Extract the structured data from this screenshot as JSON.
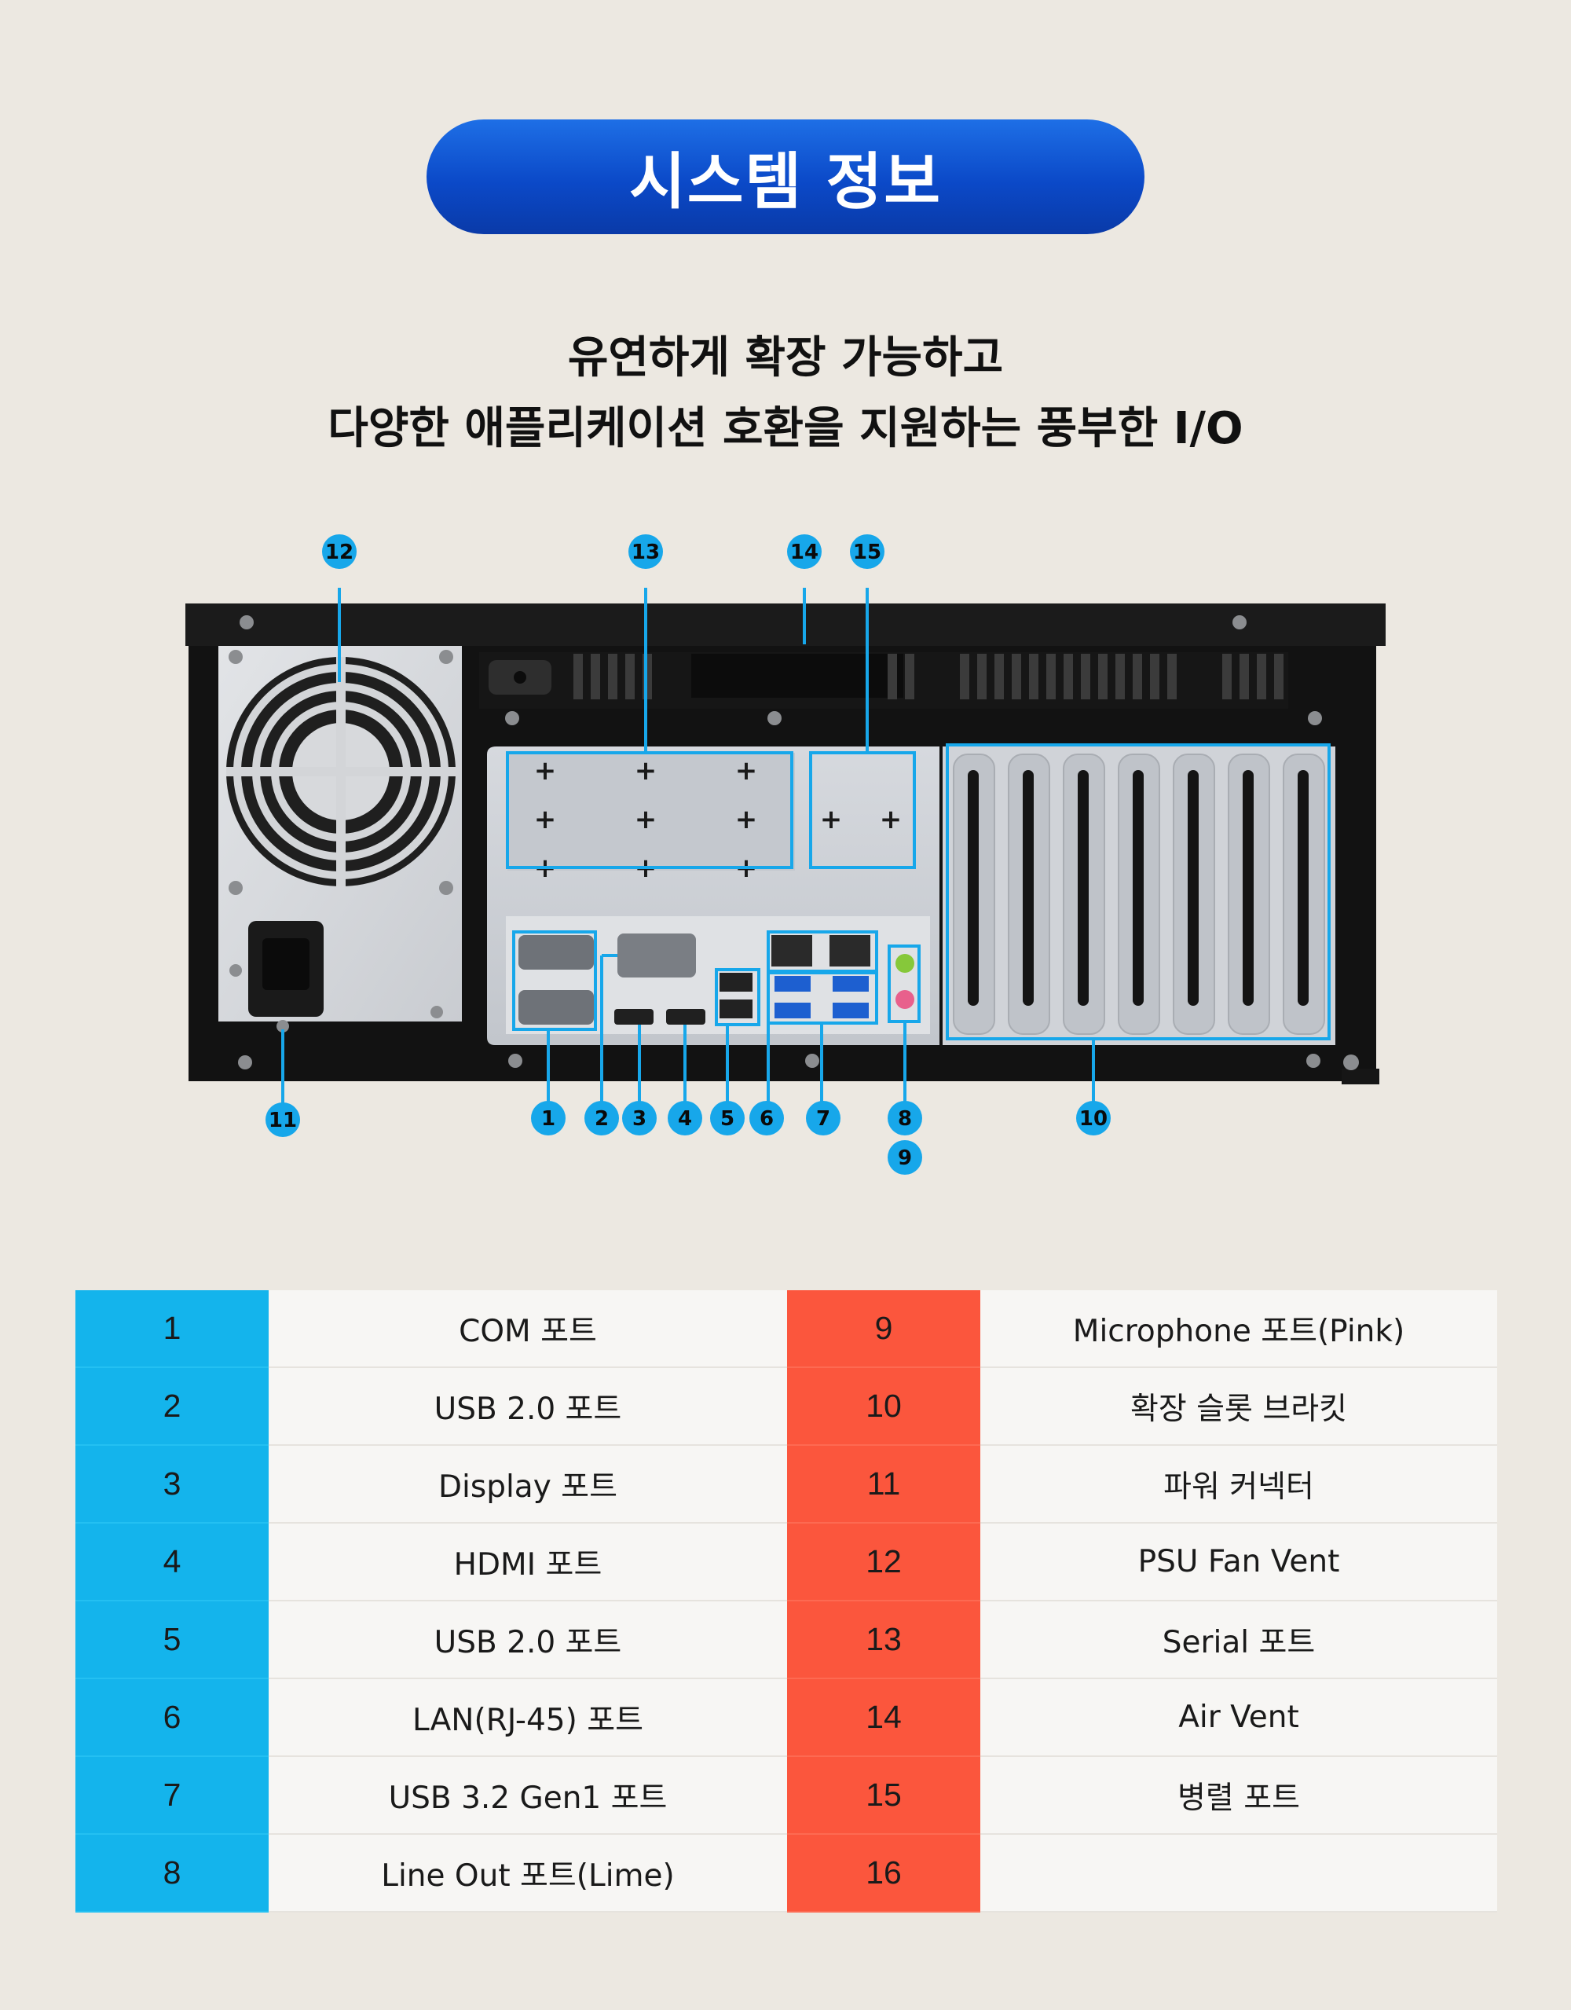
{
  "title": "시스템 정보",
  "subtitle_line1": "유연하게 확장 가능하고",
  "subtitle_line2": "다양한 애플리케이션 호환을 지원하는 풍부한 I/O",
  "accent_color": "#0b49c8",
  "left_badge_color": "#14b4ec",
  "right_badge_color": "#fb563d",
  "callouts": [
    "1",
    "2",
    "3",
    "4",
    "5",
    "6",
    "7",
    "8",
    "9",
    "10",
    "11",
    "12",
    "13",
    "14",
    "15"
  ],
  "table": {
    "left": [
      {
        "num": "1",
        "label": "COM 포트"
      },
      {
        "num": "2",
        "label": "USB 2.0 포트"
      },
      {
        "num": "3",
        "label": "Display 포트"
      },
      {
        "num": "4",
        "label": "HDMI 포트"
      },
      {
        "num": "5",
        "label": "USB 2.0 포트"
      },
      {
        "num": "6",
        "label": "LAN(RJ-45) 포트"
      },
      {
        "num": "7",
        "label": "USB 3.2 Gen1 포트"
      },
      {
        "num": "8",
        "label": "Line Out 포트(Lime)"
      }
    ],
    "right": [
      {
        "num": "9",
        "label": "Microphone 포트(Pink)"
      },
      {
        "num": "10",
        "label": "확장 슬롯 브라킷"
      },
      {
        "num": "11",
        "label": "파워 커넥터"
      },
      {
        "num": "12",
        "label": "PSU Fan Vent"
      },
      {
        "num": "13",
        "label": "Serial 포트"
      },
      {
        "num": "14",
        "label": "Air Vent"
      },
      {
        "num": "15",
        "label": "병렬 포트"
      },
      {
        "num": "16",
        "label": ""
      }
    ]
  }
}
